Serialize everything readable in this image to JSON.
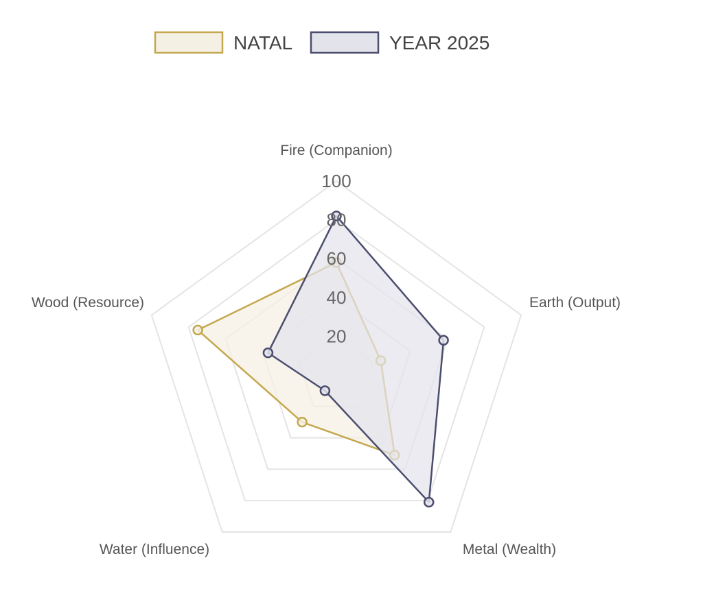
{
  "chart_data": {
    "type": "radar",
    "axes": [
      "Fire (Companion)",
      "Earth (Output)",
      "Metal (Wealth)",
      "Water (Influence)",
      "Wood (Resource)"
    ],
    "r_ticks": [
      "20",
      "40",
      "60",
      "80",
      "100"
    ],
    "rlim": [
      0,
      100
    ],
    "grid": true,
    "legend_position": "top",
    "series": [
      {
        "name": "NATAL",
        "values": [
          58,
          24,
          51,
          30,
          75
        ],
        "color": "#c3a84d",
        "fill": "#f5f0e4"
      },
      {
        "name": "YEAR 2025",
        "values": [
          82,
          58,
          81,
          10,
          37
        ],
        "color": "#4b4d6e",
        "fill": "#e3e3eb"
      }
    ]
  }
}
